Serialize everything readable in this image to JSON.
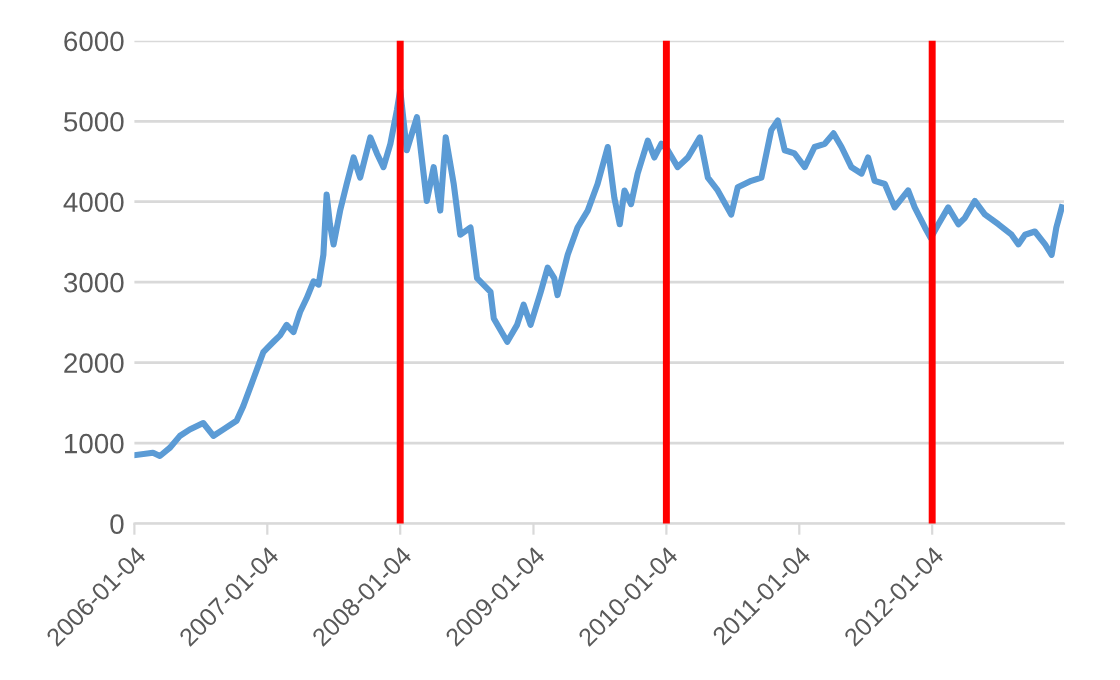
{
  "chart_data": {
    "type": "line",
    "x": [
      "2006-01-04",
      "2006-02-24",
      "2006-03-15",
      "2006-04-11",
      "2006-05-09",
      "2006-06-05",
      "2006-07-12",
      "2006-08-09",
      "2006-09-05",
      "2006-10-12",
      "2006-10-30",
      "2006-11-27",
      "2006-12-24",
      "2007-01-21",
      "2007-02-08",
      "2007-02-26",
      "2007-03-17",
      "2007-04-04",
      "2007-04-22",
      "2007-05-11",
      "2007-05-25",
      "2007-06-07",
      "2007-06-16",
      "2007-06-25",
      "2007-07-05",
      "2007-07-23",
      "2007-08-10",
      "2007-08-29",
      "2007-09-16",
      "2007-10-14",
      "2007-11-01",
      "2007-11-19",
      "2007-12-08",
      "2007-12-26",
      "2008-01-04",
      "2008-01-22",
      "2008-02-19",
      "2008-03-17",
      "2008-04-05",
      "2008-04-23",
      "2008-05-08",
      "2008-05-30",
      "2008-06-17",
      "2008-07-15",
      "2008-08-02",
      "2008-09-08",
      "2008-09-17",
      "2008-10-24",
      "2008-11-20",
      "2008-12-08",
      "2008-12-27",
      "2009-01-24",
      "2009-02-12",
      "2009-03-02",
      "2009-03-11",
      "2009-04-08",
      "2009-05-05",
      "2009-06-02",
      "2009-06-29",
      "2009-07-27",
      "2009-08-14",
      "2009-08-29",
      "2009-09-11",
      "2009-09-29",
      "2009-10-17",
      "2009-11-14",
      "2009-12-02",
      "2009-12-21",
      "2010-01-08",
      "2010-02-04",
      "2010-03-04",
      "2010-04-06",
      "2010-04-28",
      "2010-05-25",
      "2010-07-01",
      "2010-07-19",
      "2010-08-25",
      "2010-09-22",
      "2010-10-19",
      "2010-11-06",
      "2010-11-25",
      "2010-12-22",
      "2011-01-19",
      "2011-02-15",
      "2011-03-15",
      "2011-04-08",
      "2011-04-30",
      "2011-05-27",
      "2011-06-24",
      "2011-07-12",
      "2011-07-30",
      "2011-08-27",
      "2011-09-23",
      "2011-10-30",
      "2011-11-17",
      "2011-12-15",
      "2011-12-31",
      "2012-01-21",
      "2012-02-17",
      "2012-03-16",
      "2012-04-03",
      "2012-04-30",
      "2012-05-28",
      "2012-07-04",
      "2012-08-09",
      "2012-08-28",
      "2012-09-15",
      "2012-10-12",
      "2012-11-09",
      "2012-11-27",
      "2012-12-10",
      "2012-12-25"
    ],
    "series": [
      {
        "color": "#5b9bd5",
        "values": [
          850,
          880,
          840,
          940,
          1090,
          1170,
          1250,
          1090,
          1170,
          1280,
          1460,
          1800,
          2130,
          2260,
          2340,
          2470,
          2380,
          2630,
          2800,
          3010,
          2970,
          3340,
          4090,
          3720,
          3470,
          3890,
          4220,
          4550,
          4300,
          4800,
          4600,
          4430,
          4720,
          5140,
          5390,
          4640,
          5050,
          4010,
          4430,
          3890,
          4800,
          4220,
          3590,
          3680,
          3050,
          2880,
          2550,
          2260,
          2470,
          2720,
          2470,
          2880,
          3180,
          3050,
          2840,
          3340,
          3680,
          3890,
          4220,
          4680,
          4050,
          3720,
          4140,
          3970,
          4350,
          4760,
          4550,
          4720,
          4640,
          4430,
          4550,
          4800,
          4300,
          4140,
          3840,
          4180,
          4260,
          4300,
          4890,
          5010,
          4640,
          4600,
          4430,
          4680,
          4720,
          4850,
          4680,
          4430,
          4350,
          4550,
          4260,
          4220,
          3930,
          4140,
          3930,
          3680,
          3550,
          3720,
          3930,
          3720,
          3800,
          4010,
          3840,
          3720,
          3590,
          3470,
          3590,
          3630,
          3470,
          3340,
          3680,
          3930
        ]
      }
    ],
    "xlim": [
      "2006-01-04",
      "2012-12-31"
    ],
    "xticks": [
      "2006-01-04",
      "2007-01-04",
      "2008-01-04",
      "2009-01-04",
      "2010-01-04",
      "2011-01-04",
      "2012-01-04"
    ],
    "ylim": [
      0,
      6000
    ],
    "yticks": [
      0,
      1000,
      2000,
      3000,
      4000,
      5000,
      6000
    ],
    "grid": "y",
    "ref_lines": [
      {
        "axis": "x",
        "value": "2008-01-04",
        "color": "#ff0000"
      },
      {
        "axis": "x",
        "value": "2010-01-04",
        "color": "#ff0000"
      },
      {
        "axis": "x",
        "value": "2012-01-04",
        "color": "#ff0000"
      }
    ]
  }
}
